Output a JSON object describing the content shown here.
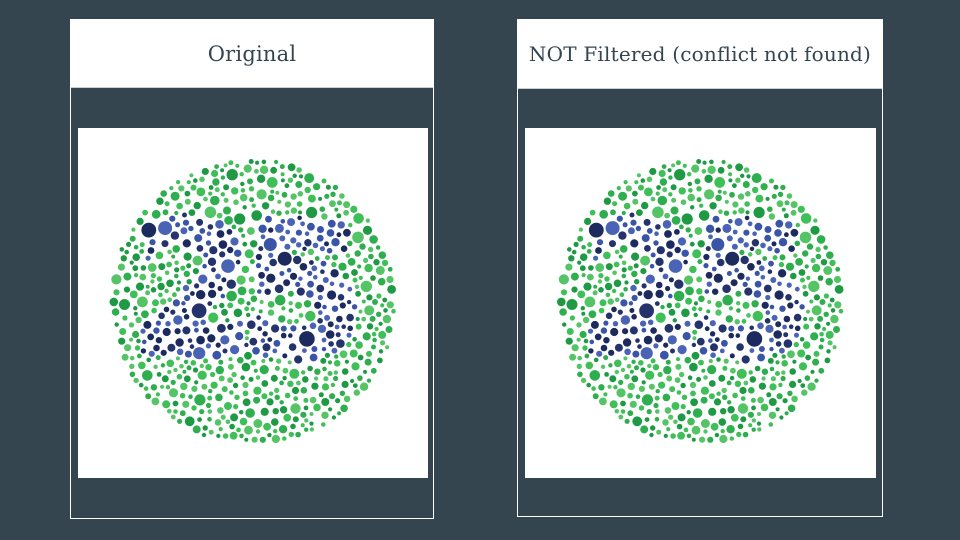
{
  "panels": [
    {
      "title": "Original",
      "plate": {
        "type": "color-vision-test-plate",
        "number_shown": "25",
        "background_dot_colors": [
          "#2fae4f",
          "#3fbf57",
          "#1f9a44",
          "#55c466"
        ],
        "figure_dot_colors": [
          "#24336b",
          "#3a55a8",
          "#4a63b5",
          "#1c2a5e"
        ]
      }
    },
    {
      "title": "NOT Filtered (conflict not found)",
      "plate": {
        "type": "color-vision-test-plate",
        "number_shown": "25",
        "background_dot_colors": [
          "#2fae4f",
          "#3fbf57",
          "#1f9a44",
          "#55c466"
        ],
        "figure_dot_colors": [
          "#24336b",
          "#3a55a8",
          "#4a63b5",
          "#1c2a5e"
        ]
      }
    }
  ],
  "colors": {
    "page_background": "#34454f",
    "header_background": "#ffffff",
    "header_text": "#34454f"
  }
}
